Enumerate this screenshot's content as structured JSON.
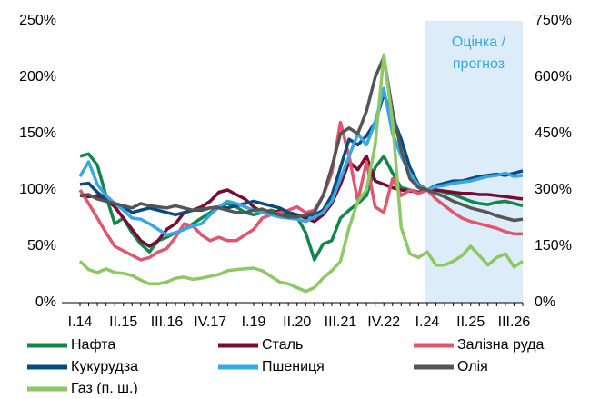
{
  "chart_data": {
    "type": "line",
    "annotation": [
      "Оцінка /",
      "прогноз"
    ],
    "annotation_color": "#3aa8e0",
    "forecast_from": "I.24",
    "forecast_color": "#dcecf8",
    "categories": [
      "I.14",
      null,
      null,
      null,
      null,
      "II.15",
      null,
      null,
      null,
      null,
      "III.16",
      null,
      null,
      null,
      null,
      "IV.17",
      null,
      null,
      null,
      null,
      "I.19",
      null,
      null,
      null,
      null,
      "II.20",
      null,
      null,
      null,
      null,
      "III.21",
      null,
      null,
      null,
      null,
      "IV.22",
      null,
      null,
      null,
      null,
      "I.24",
      null,
      null,
      null,
      null,
      "II.25",
      null,
      null,
      null,
      null,
      "III.26",
      null
    ],
    "ylim": [
      0,
      250
    ],
    "yticks": [
      {
        "value": 0,
        "label": "0%"
      },
      {
        "value": 50,
        "label": "50%"
      },
      {
        "value": 100,
        "label": "100%"
      },
      {
        "value": 150,
        "label": "150%"
      },
      {
        "value": 200,
        "label": "200%"
      },
      {
        "value": 250,
        "label": "250%"
      }
    ],
    "y2lim": [
      0,
      750
    ],
    "y2ticks": [
      {
        "value": 0,
        "label": "0%"
      },
      {
        "value": 150,
        "label": "150%"
      },
      {
        "value": 300,
        "label": "300%"
      },
      {
        "value": 450,
        "label": "450%"
      },
      {
        "value": 600,
        "label": "600%"
      },
      {
        "value": 750,
        "label": "750%"
      }
    ],
    "series": [
      {
        "name": "Нафта",
        "color": "#12854a",
        "values": [
          130,
          132,
          122,
          95,
          70,
          75,
          62,
          52,
          45,
          55,
          58,
          62,
          65,
          70,
          75,
          80,
          85,
          88,
          85,
          80,
          78,
          80,
          82,
          80,
          78,
          76,
          62,
          38,
          52,
          55,
          75,
          82,
          88,
          95,
          120,
          130,
          115,
          102,
          100,
          98,
          100,
          100,
          98,
          96,
          93,
          90,
          88,
          87,
          89,
          90,
          88,
          86
        ]
      },
      {
        "name": "Сталь",
        "color": "#7a0a30",
        "values": [
          95,
          94,
          95,
          92,
          85,
          75,
          65,
          55,
          50,
          55,
          65,
          70,
          80,
          82,
          85,
          90,
          98,
          100,
          96,
          92,
          85,
          80,
          78,
          82,
          80,
          78,
          75,
          72,
          78,
          88,
          105,
          125,
          118,
          130,
          108,
          105,
          102,
          100,
          99,
          98,
          100,
          100,
          99,
          98,
          97,
          97,
          96,
          96,
          95,
          94,
          93,
          92
        ]
      },
      {
        "name": "Залізна руда",
        "color": "#e0566e",
        "values": [
          100,
          88,
          75,
          62,
          50,
          46,
          42,
          38,
          40,
          45,
          48,
          58,
          70,
          68,
          60,
          55,
          58,
          55,
          55,
          60,
          65,
          75,
          78,
          80,
          82,
          85,
          80,
          82,
          95,
          115,
          160,
          130,
          90,
          125,
          85,
          80,
          110,
          95,
          100,
          97,
          100,
          92,
          86,
          80,
          75,
          72,
          70,
          68,
          66,
          63,
          61,
          61
        ]
      },
      {
        "name": "Кукурудза",
        "color": "#0b4a7c",
        "values": [
          105,
          106,
          98,
          92,
          88,
          85,
          80,
          82,
          84,
          82,
          80,
          78,
          80,
          82,
          82,
          84,
          85,
          84,
          86,
          88,
          90,
          88,
          86,
          84,
          80,
          78,
          77,
          78,
          82,
          95,
          120,
          145,
          140,
          148,
          160,
          185,
          165,
          145,
          120,
          105,
          100,
          104,
          106,
          108,
          108,
          110,
          112,
          113,
          114,
          113,
          115,
          117
        ]
      },
      {
        "name": "Пшениця",
        "color": "#3aa8e0",
        "values": [
          112,
          125,
          105,
          95,
          88,
          82,
          75,
          74,
          70,
          65,
          60,
          62,
          65,
          68,
          70,
          78,
          85,
          90,
          88,
          85,
          82,
          80,
          78,
          76,
          75,
          74,
          72,
          76,
          80,
          90,
          110,
          130,
          150,
          140,
          160,
          190,
          150,
          130,
          115,
          104,
          100,
          103,
          104,
          106,
          107,
          108,
          110,
          112,
          113,
          115,
          112,
          113
        ]
      },
      {
        "name": "Олія",
        "color": "#555555",
        "values": [
          95,
          96,
          92,
          90,
          88,
          86,
          84,
          88,
          86,
          85,
          84,
          86,
          84,
          82,
          83,
          84,
          84,
          82,
          80,
          80,
          82,
          83,
          80,
          78,
          76,
          76,
          78,
          80,
          95,
          120,
          150,
          155,
          150,
          170,
          200,
          218,
          170,
          135,
          110,
          102,
          100,
          97,
          94,
          90,
          87,
          84,
          82,
          80,
          77,
          75,
          73,
          74
        ]
      },
      {
        "name": "Газ (п. ш.)",
        "color": "#8cc864",
        "axis": "y2",
        "values": [
          110,
          88,
          80,
          90,
          80,
          78,
          72,
          60,
          50,
          50,
          55,
          65,
          68,
          62,
          65,
          70,
          75,
          85,
          88,
          90,
          92,
          85,
          70,
          55,
          50,
          40,
          30,
          40,
          65,
          85,
          110,
          200,
          270,
          300,
          420,
          660,
          480,
          200,
          130,
          120,
          135,
          100,
          100,
          110,
          125,
          150,
          125,
          100,
          120,
          130,
          95,
          110
        ]
      }
    ]
  }
}
